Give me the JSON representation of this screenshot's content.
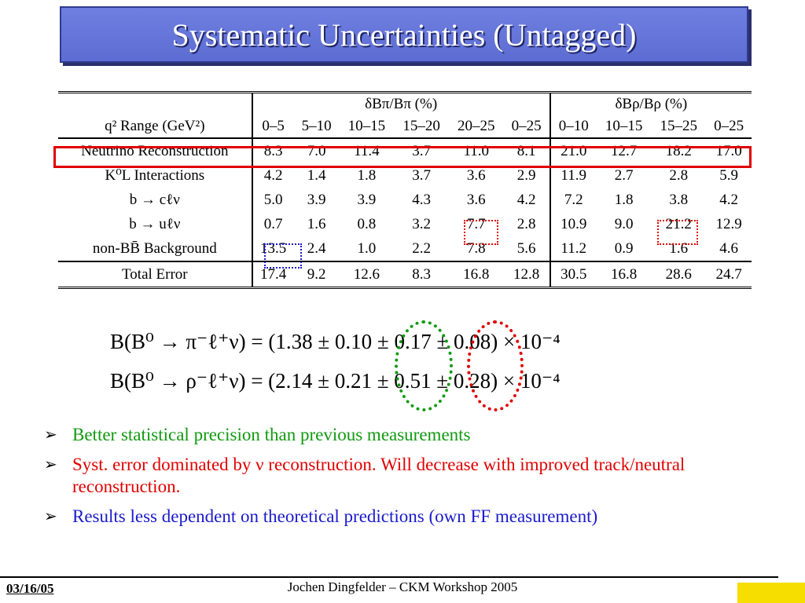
{
  "title": "Systematic Uncertainties (Untagged)",
  "table": {
    "group_pi": "δBπ/Bπ (%)",
    "group_rho": "δBρ/Bρ (%)",
    "q2_label": "q² Range (GeV²)",
    "ranges": [
      "0–5",
      "5–10",
      "10–15",
      "15–20",
      "20–25",
      "0–25",
      "0–10",
      "10–15",
      "15–25",
      "0–25"
    ],
    "rows": [
      {
        "label": "Neutrino Reconstruction",
        "values": [
          "8.3",
          "7.0",
          "11.4",
          "3.7",
          "11.0",
          "8.1",
          "21.0",
          "12.7",
          "18.2",
          "17.0"
        ]
      },
      {
        "label": "K⁰L Interactions",
        "values": [
          "4.2",
          "1.4",
          "1.8",
          "3.7",
          "3.6",
          "2.9",
          "11.9",
          "2.7",
          "2.8",
          "5.9"
        ]
      },
      {
        "label": "b → cℓν",
        "values": [
          "5.0",
          "3.9",
          "3.9",
          "4.3",
          "3.6",
          "4.2",
          "7.2",
          "1.8",
          "3.8",
          "4.2"
        ]
      },
      {
        "label": "b → uℓν",
        "values": [
          "0.7",
          "1.6",
          "0.8",
          "3.2",
          "7.7",
          "2.8",
          "10.9",
          "9.0",
          "21.2",
          "12.9"
        ]
      },
      {
        "label": "non-BB̄ Background",
        "values": [
          "13.5",
          "2.4",
          "1.0",
          "2.2",
          "7.8",
          "5.6",
          "11.2",
          "0.9",
          "1.6",
          "4.6"
        ]
      }
    ],
    "total": {
      "label": "Total Error",
      "values": [
        "17.4",
        "9.2",
        "12.6",
        "8.3",
        "16.8",
        "12.8",
        "30.5",
        "16.8",
        "28.6",
        "24.7"
      ]
    }
  },
  "equations": {
    "pi": "B(B⁰ → π⁻ℓ⁺ν)  =  (1.38 ± 0.10 ± 0.17 ± 0.08) × 10⁻⁴",
    "rho": "B(B⁰ → ρ⁻ℓ⁺ν)  =  (2.14 ± 0.21 ± 0.51 ± 0.28) × 10⁻⁴"
  },
  "bullets": [
    {
      "text": "Better statistical precision than previous measurements",
      "color": "#109a10"
    },
    {
      "text": "Syst. error dominated by ν reconstruction. Will decrease with improved track/neutral reconstruction.",
      "color": "#e00000"
    },
    {
      "text": "Results less dependent on theoretical predictions (own FF measurement)",
      "color": "#1a1acc"
    }
  ],
  "footer": {
    "date": "03/16/05",
    "center": "Jochen Dingfelder –  CKM Workshop 2005"
  },
  "colors": {
    "title_bg": "#6f7fe0",
    "highlight_red": "#e00000",
    "dotted_green": "#109a10",
    "dotted_blue": "#1a1acc",
    "footer_yellow": "#f5de00"
  }
}
